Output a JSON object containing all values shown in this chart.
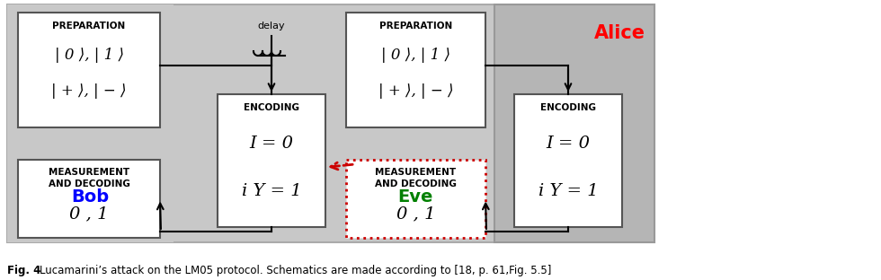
{
  "fig_width": 9.8,
  "fig_height": 3.12,
  "dpi": 100,
  "caption_bold": "Fig. 4 ",
  "caption_normal": "Lucamarini’s attack on the LM05 protocol. Schematics are made according to [18, p. 61,Fig. 5.5]",
  "alice_label": "Alice",
  "bob_label": "Bob",
  "eve_label": "Eve",
  "delay_label": "delay",
  "prep_label": "PREPARATION",
  "prep_states1": "| 0 ⟩, | 1 ⟩",
  "prep_states2": "| + ⟩, | − ⟩",
  "enc_label": "ENCODING",
  "enc_eq1": "I = 0",
  "enc_eq2": "i Y = 1",
  "meas_label1": "MEASUREMENT",
  "meas_label2": "AND DECODING",
  "meas_states": "0 , 1"
}
